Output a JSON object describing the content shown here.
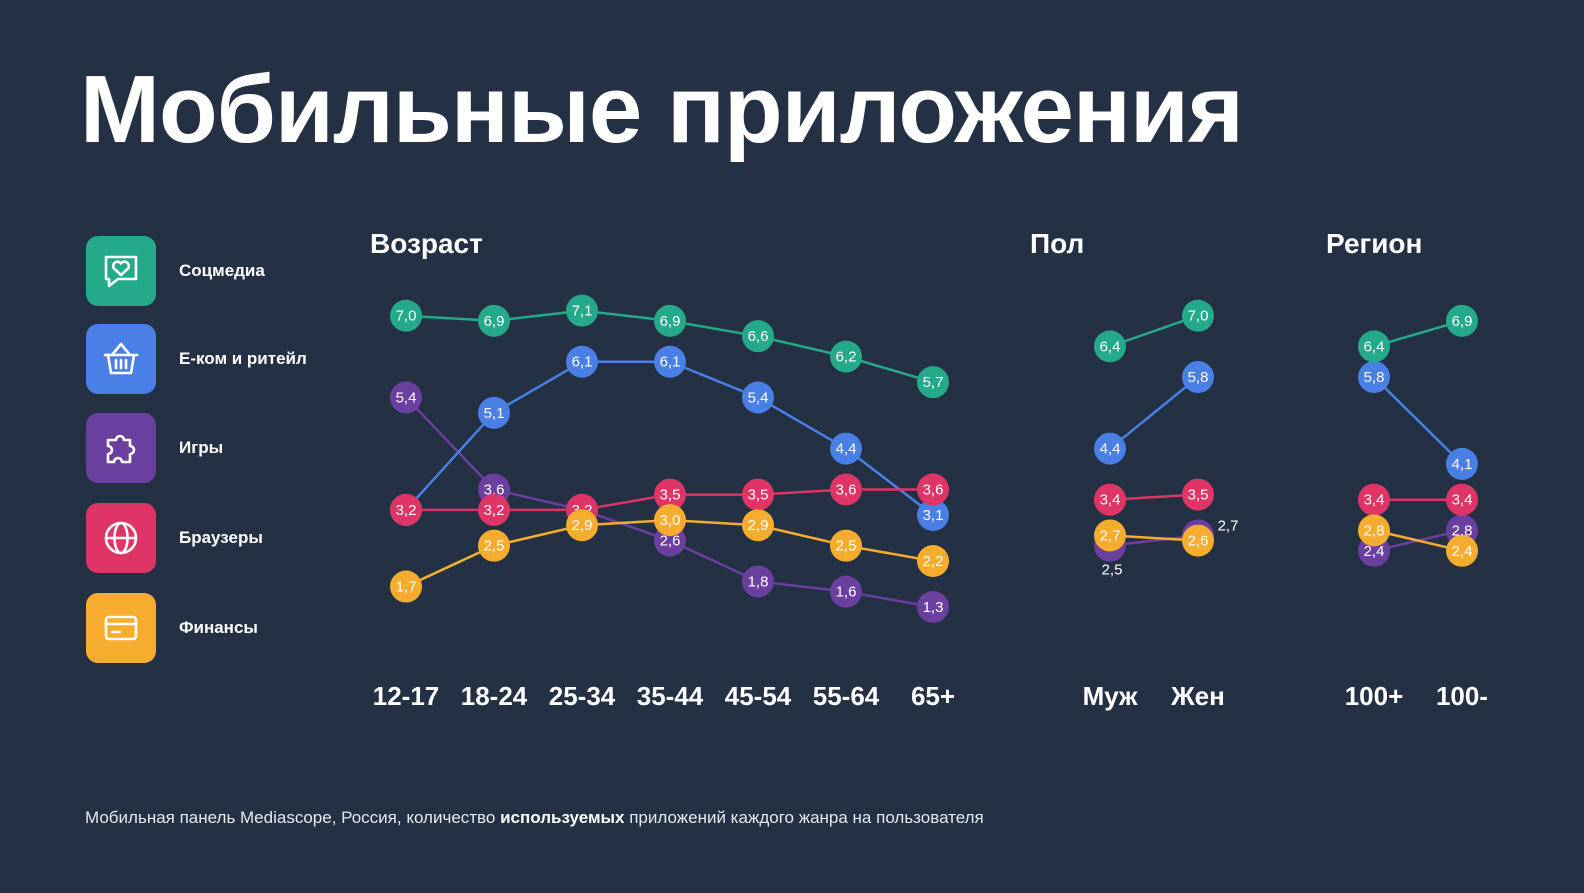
{
  "title": "Мобильные приложения",
  "legend": [
    {
      "label": "Соцмедиа",
      "color": "#24A98A",
      "icon": "heart-chat-icon"
    },
    {
      "label": "Е-ком и ритейл",
      "color": "#4A7FE6",
      "icon": "basket-icon"
    },
    {
      "label": "Игры",
      "color": "#6A3F9F",
      "icon": "puzzle-icon"
    },
    {
      "label": "Браузеры",
      "color": "#DE3466",
      "icon": "globe-icon"
    },
    {
      "label": "Финансы",
      "color": "#F6AC2E",
      "icon": "card-icon"
    }
  ],
  "sections": {
    "age": "Возраст",
    "gender": "Пол",
    "region": "Регион"
  },
  "footnote": {
    "before": "Мобильная панель Mediascope, Россия, количество ",
    "bold": "используемых",
    "after": " приложений каждого жанра на пользователя"
  },
  "chart_data": [
    {
      "type": "line",
      "title": "Возраст",
      "categories": [
        "12-17",
        "18-24",
        "25-34",
        "35-44",
        "45-54",
        "55-64",
        "65+"
      ],
      "series": [
        {
          "name": "Соцмедиа",
          "color": "#24A98A",
          "values": [
            7.0,
            6.9,
            7.1,
            6.9,
            6.6,
            6.2,
            5.7
          ],
          "labels": [
            "7,0",
            "6,9",
            "7,1",
            "6,9",
            "6,6",
            "6,2",
            "5,7"
          ]
        },
        {
          "name": "Е-ком и ритейл",
          "color": "#4A7FE6",
          "values": [
            3.2,
            5.1,
            6.1,
            6.1,
            5.4,
            4.4,
            3.1
          ],
          "labels": [
            "3,2",
            "5,1",
            "6,1",
            "6,1",
            "5,4",
            "4,4",
            "3,1"
          ]
        },
        {
          "name": "Игры",
          "color": "#6A3F9F",
          "values": [
            5.4,
            3.6,
            3.2,
            2.6,
            1.8,
            1.6,
            1.3
          ],
          "labels": [
            "5,4",
            "3,6",
            "3,2",
            "2,6",
            "1,8",
            "1,6",
            "1,3"
          ]
        },
        {
          "name": "Браузеры",
          "color": "#DE3466",
          "values": [
            3.2,
            3.2,
            3.2,
            3.5,
            3.5,
            3.6,
            3.6
          ],
          "labels": [
            "3,2",
            "3,2",
            "3,2",
            "3,5",
            "3,5",
            "3,6",
            "3,6"
          ]
        },
        {
          "name": "Финансы",
          "color": "#F6AC2E",
          "values": [
            1.7,
            2.5,
            2.9,
            3.0,
            2.9,
            2.5,
            2.2
          ],
          "labels": [
            "1,7",
            "2,5",
            "2,9",
            "3,0",
            "2,9",
            "2,5",
            "2,2"
          ]
        }
      ]
    },
    {
      "type": "line",
      "title": "Пол",
      "categories": [
        "Муж",
        "Жен"
      ],
      "series": [
        {
          "name": "Соцмедиа",
          "color": "#24A98A",
          "values": [
            6.4,
            7.0
          ],
          "labels": [
            "6,4",
            "7,0"
          ]
        },
        {
          "name": "Е-ком и ритейл",
          "color": "#4A7FE6",
          "values": [
            4.4,
            5.8
          ],
          "labels": [
            "4,4",
            "5,8"
          ]
        },
        {
          "name": "Игры",
          "color": "#6A3F9F",
          "values": [
            2.5,
            2.7
          ],
          "labels": [
            "2,5",
            "2,7"
          ]
        },
        {
          "name": "Браузеры",
          "color": "#DE3466",
          "values": [
            3.4,
            3.5
          ],
          "labels": [
            "3,4",
            "3,5"
          ]
        },
        {
          "name": "Финансы",
          "color": "#F6AC2E",
          "values": [
            2.7,
            2.6
          ],
          "labels": [
            "2,7",
            "2,6"
          ]
        }
      ]
    },
    {
      "type": "line",
      "title": "Регион",
      "categories": [
        "100+",
        "100-"
      ],
      "series": [
        {
          "name": "Соцмедиа",
          "color": "#24A98A",
          "values": [
            6.4,
            6.9
          ],
          "labels": [
            "6,4",
            "6,9"
          ]
        },
        {
          "name": "Е-ком и ритейл",
          "color": "#4A7FE6",
          "values": [
            5.8,
            4.1
          ],
          "labels": [
            "5,8",
            "4,1"
          ]
        },
        {
          "name": "Игры",
          "color": "#6A3F9F",
          "values": [
            2.4,
            2.8
          ],
          "labels": [
            "2,4",
            "2,8"
          ]
        },
        {
          "name": "Браузеры",
          "color": "#DE3466",
          "values": [
            3.4,
            3.4
          ],
          "labels": [
            "3,4",
            "3,4"
          ]
        },
        {
          "name": "Финансы",
          "color": "#F6AC2E",
          "values": [
            2.8,
            2.4
          ],
          "labels": [
            "2,8",
            "2,4"
          ]
        }
      ]
    }
  ]
}
